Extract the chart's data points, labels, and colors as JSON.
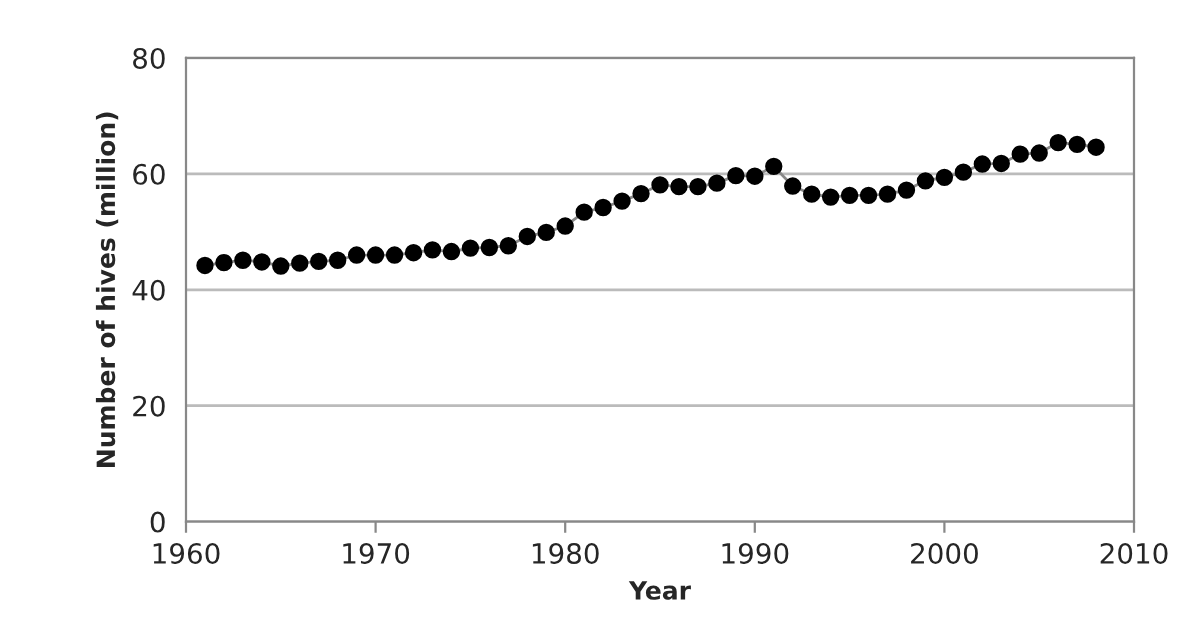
{
  "chart_data": {
    "type": "line",
    "xlabel": "Year",
    "ylabel": "Number of hives (million)",
    "x": [
      1961,
      1962,
      1963,
      1964,
      1965,
      1966,
      1967,
      1968,
      1969,
      1970,
      1971,
      1972,
      1973,
      1974,
      1975,
      1976,
      1977,
      1978,
      1979,
      1980,
      1981,
      1982,
      1983,
      1984,
      1985,
      1986,
      1987,
      1988,
      1989,
      1990,
      1991,
      1992,
      1993,
      1994,
      1995,
      1996,
      1997,
      1998,
      1999,
      2000,
      2001,
      2002,
      2003,
      2004,
      2005,
      2006,
      2007,
      2008
    ],
    "series": [
      {
        "color": "#000000",
        "values": [
          44.2,
          44.7,
          45.1,
          44.8,
          44.1,
          44.6,
          44.9,
          45.1,
          46.0,
          46.0,
          46.0,
          46.4,
          46.9,
          46.6,
          47.2,
          47.3,
          47.6,
          49.2,
          49.9,
          51.0,
          53.4,
          54.2,
          55.3,
          56.6,
          58.1,
          57.8,
          57.8,
          58.4,
          59.7,
          59.6,
          61.3,
          57.9,
          56.5,
          56.0,
          56.3,
          56.3,
          56.5,
          57.2,
          58.8,
          59.4,
          60.3,
          61.7,
          61.8,
          63.4,
          63.6,
          65.4,
          65.1,
          64.6
        ]
      }
    ],
    "xlim": [
      1960,
      2010
    ],
    "xticks": [
      1960,
      1970,
      1980,
      1990,
      2000,
      2010
    ],
    "ylim": [
      0,
      80
    ],
    "yticks": [
      0,
      20,
      40,
      60,
      80
    ],
    "grid": "y",
    "marker": "circle",
    "line_style": "solid",
    "legend": false
  }
}
